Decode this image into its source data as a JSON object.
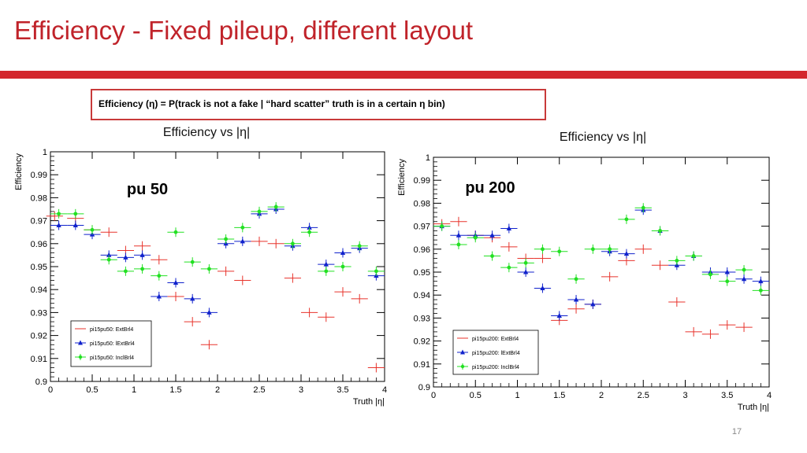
{
  "slide": {
    "title": "Efficiency - Fixed pileup, different layout",
    "definition": "Efficiency (η) = P(track is not a fake | “hard scatter” truth is in a certain η bin)",
    "page_number": "17"
  },
  "colors": {
    "title": "#c0232a",
    "bar": "#d3262c",
    "red": "#e8332b",
    "blue": "#1022cc",
    "green": "#22e022"
  },
  "chart_data": [
    {
      "type": "scatter",
      "title": "Efficiency vs |η|",
      "annotation": "pu 50",
      "xlabel": "Truth |η|",
      "ylabel": "Efficiency",
      "xlim": [
        0,
        4
      ],
      "ylim": [
        0.9,
        1.0
      ],
      "xticks": [
        "0",
        "0.5",
        "1",
        "1.5",
        "2",
        "2.5",
        "3",
        "3.5",
        "4"
      ],
      "yticks": [
        "0.9",
        "0.91",
        "0.92",
        "0.93",
        "0.94",
        "0.95",
        "0.96",
        "0.97",
        "0.98",
        "0.99",
        "1"
      ],
      "legend_position": "bottom-left",
      "grid": false,
      "series": [
        {
          "name": "pi15pu50: ExtBrl4",
          "marker": "none",
          "color": "#e8332b",
          "x": [
            0.05,
            0.3,
            0.5,
            0.7,
            0.9,
            1.1,
            1.3,
            1.5,
            1.7,
            1.9,
            2.1,
            2.3,
            2.5,
            2.7,
            2.9,
            3.1,
            3.3,
            3.5,
            3.7,
            3.9
          ],
          "y": [
            0.972,
            0.971,
            0.966,
            0.965,
            0.957,
            0.959,
            0.953,
            0.937,
            0.926,
            0.916,
            0.948,
            0.944,
            0.961,
            0.96,
            0.945,
            0.93,
            0.928,
            0.939,
            0.936,
            0.906
          ]
        },
        {
          "name": "pi15pu50: lExtBrl4",
          "marker": "triangle",
          "color": "#1022cc",
          "x": [
            0.1,
            0.3,
            0.5,
            0.7,
            0.9,
            1.1,
            1.3,
            1.5,
            1.7,
            1.9,
            2.1,
            2.3,
            2.5,
            2.7,
            2.9,
            3.1,
            3.3,
            3.5,
            3.7,
            3.9
          ],
          "y": [
            0.968,
            0.968,
            0.964,
            0.955,
            0.954,
            0.955,
            0.937,
            0.943,
            0.936,
            0.93,
            0.96,
            0.961,
            0.973,
            0.975,
            0.959,
            0.967,
            0.951,
            0.956,
            0.958,
            0.946
          ]
        },
        {
          "name": "pi15pu50: InclBrl4",
          "marker": "circle",
          "color": "#22e022",
          "x": [
            0.1,
            0.3,
            0.5,
            0.7,
            0.9,
            1.1,
            1.3,
            1.5,
            1.7,
            1.9,
            2.1,
            2.3,
            2.5,
            2.7,
            2.9,
            3.1,
            3.3,
            3.5,
            3.7,
            3.9
          ],
          "y": [
            0.973,
            0.973,
            0.966,
            0.953,
            0.948,
            0.949,
            0.946,
            0.965,
            0.952,
            0.949,
            0.962,
            0.967,
            0.974,
            0.976,
            0.96,
            0.965,
            0.948,
            0.95,
            0.959,
            0.948
          ]
        }
      ]
    },
    {
      "type": "scatter",
      "title": "Efficiency vs |η|",
      "annotation": "pu 200",
      "xlabel": "Truth |η|",
      "ylabel": "Efficiency",
      "xlim": [
        0,
        4
      ],
      "ylim": [
        0.9,
        1.0
      ],
      "xticks": [
        "0",
        "0.5",
        "1",
        "1.5",
        "2",
        "2.5",
        "3",
        "3.5",
        "4"
      ],
      "yticks": [
        "0.9",
        "0.91",
        "0.92",
        "0.93",
        "0.94",
        "0.95",
        "0.96",
        "0.97",
        "0.98",
        "0.99",
        "1"
      ],
      "legend_position": "bottom-left",
      "grid": false,
      "series": [
        {
          "name": "pi15pu200: ExtBrl4",
          "marker": "none",
          "color": "#e8332b",
          "x": [
            0.1,
            0.3,
            0.5,
            0.7,
            0.9,
            1.1,
            1.3,
            1.5,
            1.7,
            1.9,
            2.1,
            2.3,
            2.5,
            2.7,
            2.9,
            3.1,
            3.3,
            3.5,
            3.7
          ],
          "y": [
            0.971,
            0.972,
            0.966,
            0.965,
            0.961,
            0.956,
            0.956,
            0.929,
            0.934,
            0.936,
            0.948,
            0.955,
            0.96,
            0.953,
            0.937,
            0.924,
            0.923,
            0.927,
            0.926
          ]
        },
        {
          "name": "pi15pu200: lExtBrl4",
          "marker": "triangle",
          "color": "#1022cc",
          "x": [
            0.1,
            0.3,
            0.5,
            0.7,
            0.9,
            1.1,
            1.3,
            1.5,
            1.7,
            1.9,
            2.1,
            2.3,
            2.5,
            2.7,
            2.9,
            3.1,
            3.3,
            3.5,
            3.7,
            3.9
          ],
          "y": [
            0.97,
            0.966,
            0.966,
            0.966,
            0.969,
            0.95,
            0.943,
            0.931,
            0.938,
            0.936,
            0.959,
            0.958,
            0.977,
            0.968,
            0.953,
            0.957,
            0.95,
            0.95,
            0.947,
            0.946
          ]
        },
        {
          "name": "pi15pu200: InclBrl4",
          "marker": "circle",
          "color": "#22e022",
          "x": [
            0.1,
            0.3,
            0.5,
            0.7,
            0.9,
            1.1,
            1.3,
            1.5,
            1.7,
            1.9,
            2.1,
            2.3,
            2.5,
            2.7,
            2.9,
            3.1,
            3.3,
            3.5,
            3.7,
            3.9
          ],
          "y": [
            0.97,
            0.962,
            0.965,
            0.957,
            0.952,
            0.954,
            0.96,
            0.959,
            0.947,
            0.96,
            0.96,
            0.973,
            0.978,
            0.968,
            0.955,
            0.957,
            0.949,
            0.946,
            0.951,
            0.942
          ]
        }
      ]
    }
  ]
}
